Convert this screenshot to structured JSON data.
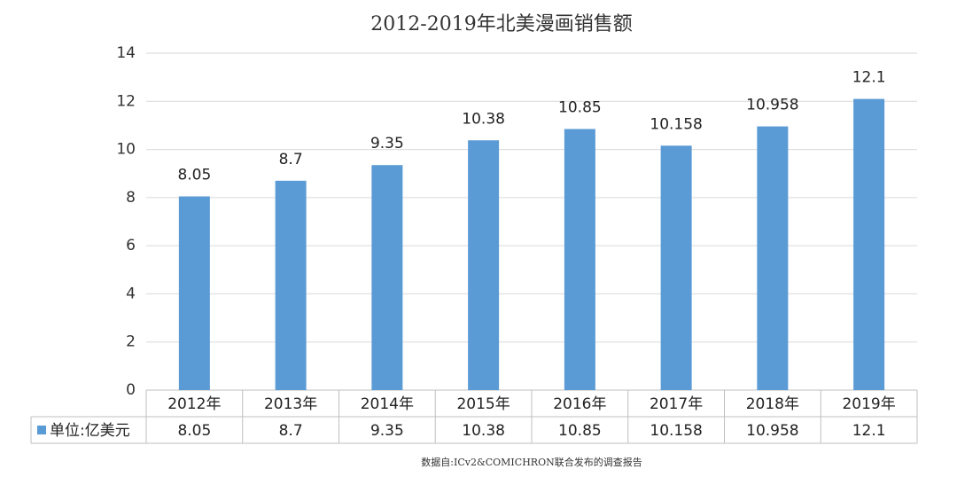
{
  "chart_data": {
    "type": "bar",
    "title": "2012-2019年北美漫画销售额",
    "categories": [
      "2012年",
      "2013年",
      "2014年",
      "2015年",
      "2016年",
      "2017年",
      "2018年",
      "2019年"
    ],
    "series": [
      {
        "name": "单位:亿美元",
        "color": "#5b9bd5",
        "values": [
          8.05,
          8.7,
          9.35,
          10.38,
          10.85,
          10.158,
          10.958,
          12.1
        ]
      }
    ],
    "ylim": [
      0,
      14
    ],
    "yticks": [
      0,
      2,
      4,
      6,
      8,
      10,
      12,
      14
    ],
    "grid": true,
    "source": "数据自:ICv2&COMICHRON联合发布的调查报告"
  }
}
